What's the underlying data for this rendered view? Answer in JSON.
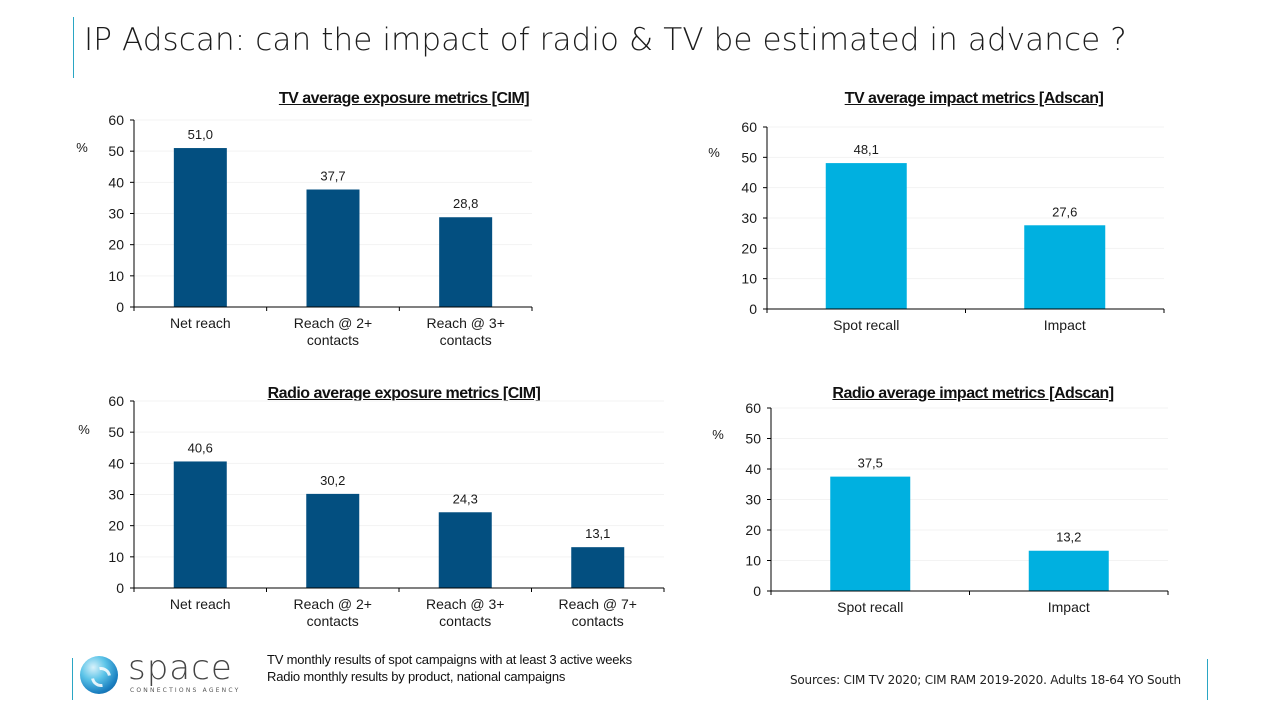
{
  "page": {
    "title": "IP Adscan: can the impact of radio & TV be estimated in advance ?",
    "footnote_lines": [
      "TV monthly results of spot campaigns with at least 3 active weeks",
      "Radio monthly results by product, national campaigns"
    ],
    "sources": "Sources: CIM TV 2020; CIM RAM 2019-2020. Adults 18-64 YO South",
    "logo": {
      "name": "space",
      "tagline": "CONNECTIONS AGENCY",
      "icon": "globe-swirl-icon"
    }
  },
  "colors": {
    "dark_bar": "#034f80",
    "light_bar": "#00b0e0",
    "accent": "#2aa6c4"
  },
  "chart_data": [
    {
      "type": "bar",
      "title": "TV average exposure metrics [CIM]",
      "ylabel": "%",
      "xlabel": "",
      "ylim": [
        0,
        60
      ],
      "yticks": [
        "0",
        "10",
        "20",
        "30",
        "40",
        "50",
        "60"
      ],
      "categories": [
        [
          "Net reach"
        ],
        [
          "Reach @ 2+",
          "contacts"
        ],
        [
          "Reach @ 3+",
          "contacts"
        ]
      ],
      "values": [
        51.0,
        37.7,
        28.8
      ],
      "value_labels": [
        "51,0",
        "37,7",
        "28,8"
      ],
      "color": "#034f80",
      "grid": false,
      "legend": "none"
    },
    {
      "type": "bar",
      "title": "TV average impact metrics [Adscan]",
      "ylabel": "%",
      "xlabel": "",
      "ylim": [
        0,
        60
      ],
      "yticks": [
        "0",
        "10",
        "20",
        "30",
        "40",
        "50",
        "60"
      ],
      "categories": [
        [
          "Spot recall"
        ],
        [
          "Impact"
        ]
      ],
      "values": [
        48.1,
        27.6
      ],
      "value_labels": [
        "48,1",
        "27,6"
      ],
      "color": "#00b0e0",
      "grid": false,
      "legend": "none"
    },
    {
      "type": "bar",
      "title": "Radio average exposure metrics [CIM]",
      "ylabel": "%",
      "xlabel": "",
      "ylim": [
        0,
        60
      ],
      "yticks": [
        "0",
        "10",
        "20",
        "30",
        "40",
        "50",
        "60"
      ],
      "categories": [
        [
          "Net reach"
        ],
        [
          "Reach @ 2+",
          "contacts"
        ],
        [
          "Reach @ 3+",
          "contacts"
        ],
        [
          "Reach @ 7+",
          "contacts"
        ]
      ],
      "values": [
        40.6,
        30.2,
        24.3,
        13.1
      ],
      "value_labels": [
        "40,6",
        "30,2",
        "24,3",
        "13,1"
      ],
      "color": "#034f80",
      "grid": false,
      "legend": "none"
    },
    {
      "type": "bar",
      "title": "Radio average impact metrics [Adscan]",
      "ylabel": "%",
      "xlabel": "",
      "ylim": [
        0,
        60
      ],
      "yticks": [
        "0",
        "10",
        "20",
        "30",
        "40",
        "50",
        "60"
      ],
      "categories": [
        [
          "Spot recall"
        ],
        [
          "Impact"
        ]
      ],
      "values": [
        37.5,
        13.2
      ],
      "value_labels": [
        "37,5",
        "13,2"
      ],
      "color": "#00b0e0",
      "grid": false,
      "legend": "none"
    }
  ]
}
